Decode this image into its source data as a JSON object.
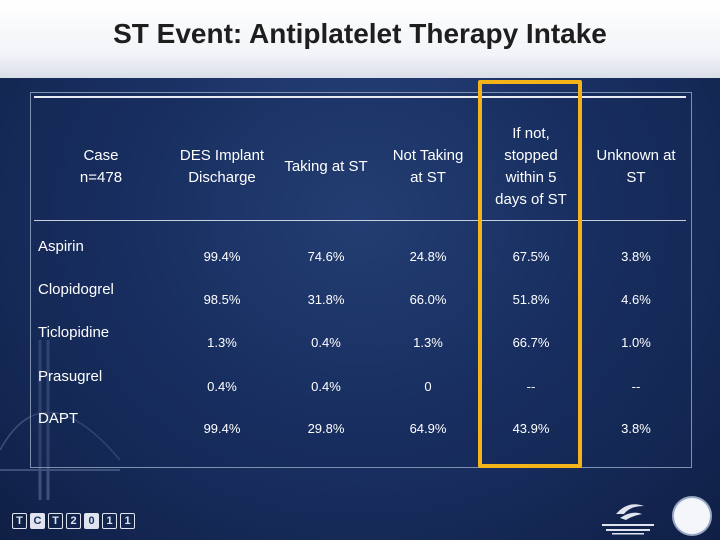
{
  "title": "ST Event: Antiplatelet Therapy Intake",
  "table": {
    "columns": [
      "Case\nn=478",
      "DES Implant\nDischarge",
      "Taking at ST",
      "Not Taking\nat ST",
      "If not,\nstopped\nwithin 5\ndays of ST",
      "Unknown at\nST"
    ],
    "rows": [
      {
        "label": "Aspirin",
        "values": [
          "99.4%",
          "74.6%",
          "24.8%",
          "67.5%",
          "3.8%"
        ]
      },
      {
        "label": "Clopidogrel",
        "values": [
          "98.5%",
          "31.8%",
          "66.0%",
          "51.8%",
          "4.6%"
        ]
      },
      {
        "label": "Ticlopidine",
        "values": [
          "1.3%",
          "0.4%",
          "1.3%",
          "66.7%",
          "1.0%"
        ]
      },
      {
        "label": "Prasugrel",
        "values": [
          "0.4%",
          "0.4%",
          "0",
          "--",
          "--"
        ]
      },
      {
        "label": "DAPT",
        "values": [
          "99.4%",
          "29.8%",
          "64.9%",
          "43.9%",
          "3.8%"
        ]
      }
    ]
  },
  "footer": {
    "conference_logo": [
      "T",
      "C",
      "T",
      "2",
      "0",
      "1",
      "1"
    ],
    "icons": [
      "conference-logo",
      "institution-logo",
      "university-seal"
    ]
  },
  "colors": {
    "highlight": "#f5b31a",
    "background": "#1b3266",
    "title_bar": "#ffffff"
  }
}
